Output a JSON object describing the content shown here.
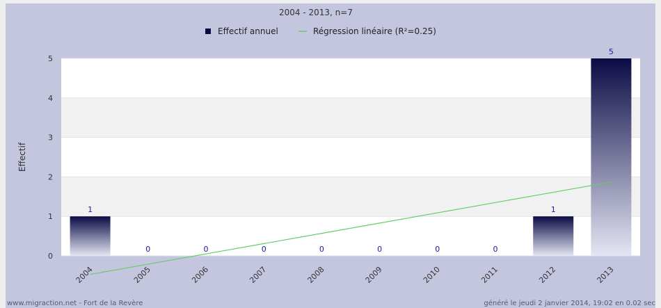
{
  "chart_data": {
    "type": "bar",
    "title": "2004 - 2013, n=7",
    "ylabel": "Effectif",
    "xlabel": "",
    "categories": [
      "2004",
      "2005",
      "2006",
      "2007",
      "2008",
      "2009",
      "2010",
      "2011",
      "2012",
      "2013"
    ],
    "series": [
      {
        "name": "Effectif annuel",
        "type": "bar",
        "values": [
          1,
          0,
          0,
          0,
          0,
          0,
          0,
          0,
          1,
          5
        ]
      },
      {
        "name": "Régression linéaire (R²=0.25)",
        "type": "line",
        "values": [
          -0.47,
          -0.21,
          0.05,
          0.31,
          0.57,
          0.83,
          1.09,
          1.35,
          1.61,
          1.87
        ]
      }
    ],
    "ylim": [
      0,
      5
    ],
    "yticks": [
      0,
      1,
      2,
      3,
      4,
      5
    ],
    "grid": true,
    "legend": "top-center",
    "colors": {
      "bar_top": "#0b0b45",
      "bar_bottom": "#e4e6f4",
      "line": "#66cc66",
      "value_label": "#1a1a9a",
      "panel": "#c3c6de",
      "band_light": "#f1f1f1",
      "band_white": "#ffffff"
    }
  },
  "footer": {
    "left": "www.migraction.net - Fort de la Revère",
    "right": "généré le jeudi 2 janvier 2014, 19:02 en 0.02 sec"
  }
}
